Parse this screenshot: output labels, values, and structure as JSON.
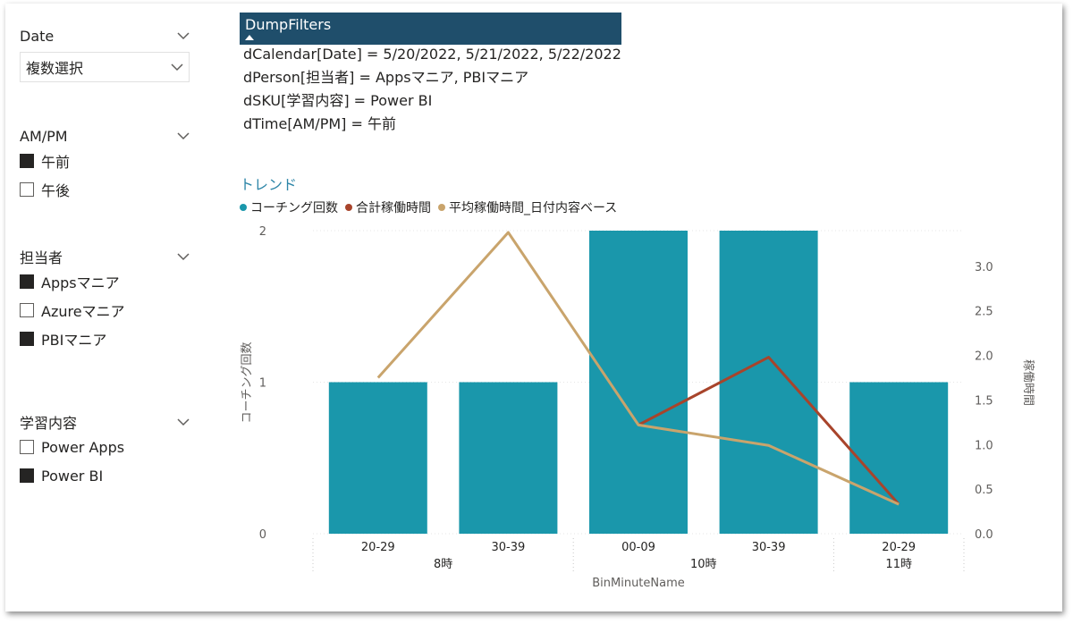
{
  "slicers": {
    "date": {
      "title": "Date",
      "value": "複数選択"
    },
    "ampm": {
      "title": "AM/PM",
      "options": [
        {
          "label": "午前",
          "checked": true
        },
        {
          "label": "午後",
          "checked": false
        }
      ]
    },
    "person": {
      "title": "担当者",
      "options": [
        {
          "label": "Appsマニア",
          "checked": true
        },
        {
          "label": "Azureマニア",
          "checked": false
        },
        {
          "label": "PBIマニア",
          "checked": true
        }
      ]
    },
    "sku": {
      "title": "学習内容",
      "options": [
        {
          "label": "Power Apps",
          "checked": false
        },
        {
          "label": "Power BI",
          "checked": true
        }
      ]
    }
  },
  "dump": {
    "header": "DumpFilters",
    "lines": [
      "dCalendar[Date] = 5/20/2022, 5/21/2022, 5/22/2022",
      "dPerson[担当者] = Appsマニア, PBIマニア",
      "dSKU[学習内容] = Power BI",
      "dTime[AM/PM] = 午前"
    ]
  },
  "chart_data": {
    "type": "bar",
    "title": "トレンド",
    "categories": [
      "20-29",
      "30-39",
      "00-09",
      "30-39",
      "20-29"
    ],
    "groups": [
      {
        "label": "8時",
        "span": [
          0,
          1
        ]
      },
      {
        "label": "10時",
        "span": [
          2,
          3
        ]
      },
      {
        "label": "11時",
        "span": [
          4,
          4
        ]
      }
    ],
    "xlabel": "BinMinuteName",
    "ylabel": "コーチング回数",
    "y2label": "稼働時間",
    "ylim": [
      0,
      2
    ],
    "y2lim": [
      0,
      3.4
    ],
    "yticks": [
      0,
      1,
      2
    ],
    "y2ticks": [
      "0.0",
      "0.5",
      "1.0",
      "1.5",
      "2.0",
      "2.5",
      "3.0"
    ],
    "series": [
      {
        "name": "コーチング回数",
        "kind": "bar",
        "axis": "left",
        "color": "#1a97ab",
        "values": [
          1,
          1,
          2,
          2,
          1
        ]
      },
      {
        "name": "合計稼働時間",
        "kind": "line",
        "axis": "right",
        "color": "#a8442b",
        "values": [
          null,
          null,
          1.22,
          1.98,
          0.33
        ]
      },
      {
        "name": "平均稼働時間_日付内容ベース",
        "kind": "line",
        "axis": "right",
        "color": "#c9a46c",
        "values": [
          1.75,
          3.38,
          1.22,
          0.99,
          0.33
        ]
      }
    ],
    "legend_position": "top-left"
  }
}
